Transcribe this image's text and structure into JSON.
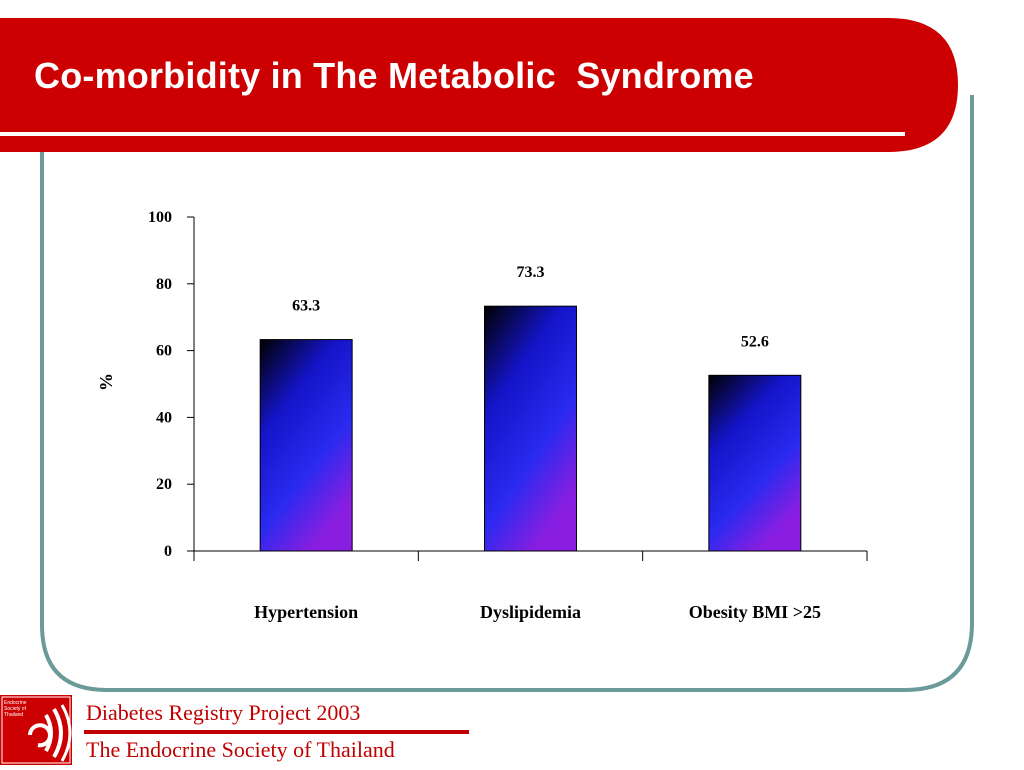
{
  "slide": {
    "title": "Co-morbidity in The Metabolic  Syndrome",
    "footer_line1": "Diabetes Registry Project 2003",
    "footer_line2": "The Endocrine Society of Thailand",
    "logo_text": "Endocrine Society of Thailand"
  },
  "colors": {
    "title_band": "#cc0000",
    "frame_border": "#6b9a9a",
    "footer_text": "#c00000",
    "bar_top": "#000000",
    "bar_mid": "#1a1ae6",
    "bar_bottom": "#8a2be2"
  },
  "chart_data": {
    "type": "bar",
    "categories": [
      "Hypertension",
      "Dyslipidemia",
      "Obesity BMI >25"
    ],
    "values": [
      63.3,
      73.3,
      52.6
    ],
    "data_labels": [
      "63.3",
      "73.3",
      "52.6"
    ],
    "ylabel": "%",
    "ylim": [
      0,
      100
    ],
    "yticks": [
      0,
      20,
      40,
      60,
      80,
      100
    ],
    "grid": false,
    "legend": "none"
  }
}
